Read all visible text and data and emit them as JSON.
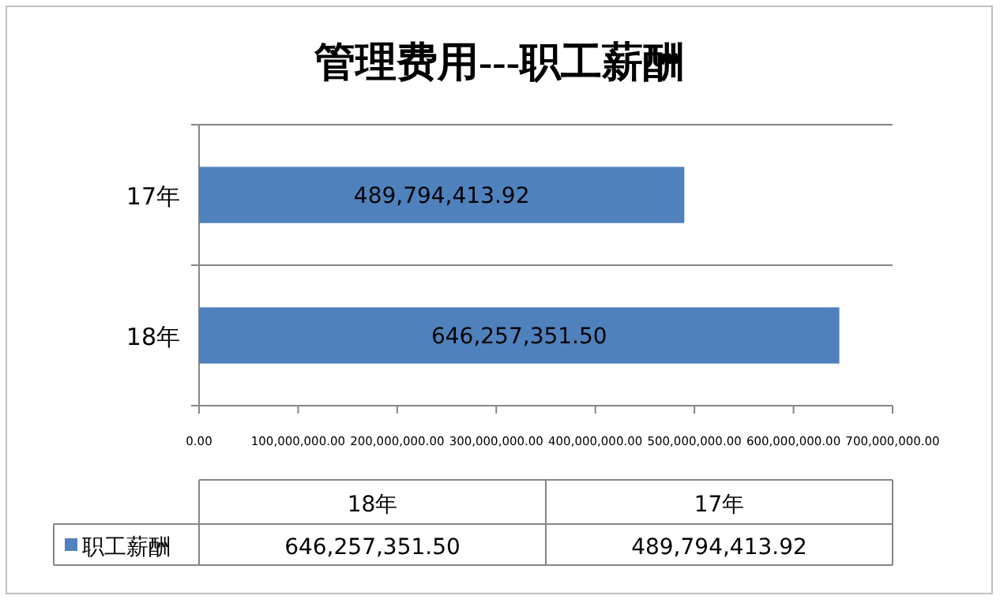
{
  "chart_data": {
    "type": "bar",
    "orientation": "horizontal",
    "title": "管理费用---职工薪酬",
    "categories": [
      "17年",
      "18年"
    ],
    "series": [
      {
        "name": "职工薪酬",
        "color": "#4f81bd",
        "values": [
          489794413.92,
          646257351.5
        ]
      }
    ],
    "xlim": [
      0,
      700000000
    ],
    "xticks": [
      {
        "value": 0,
        "label": "0.00"
      },
      {
        "value": 100000000,
        "label": "100,000,000.00"
      },
      {
        "value": 200000000,
        "label": "200,000,000.00"
      },
      {
        "value": 300000000,
        "label": "300,000,000.00"
      },
      {
        "value": 400000000,
        "label": "400,000,000.00"
      },
      {
        "value": 500000000,
        "label": "500,000,000.00"
      },
      {
        "value": 600000000,
        "label": "600,000,000.00"
      },
      {
        "value": 700000000,
        "label": "700,000,000.00"
      }
    ],
    "value_labels": [
      "489,794,413.92",
      "646,257,351.50"
    ],
    "grid": "y",
    "legend": "bottom"
  }
}
